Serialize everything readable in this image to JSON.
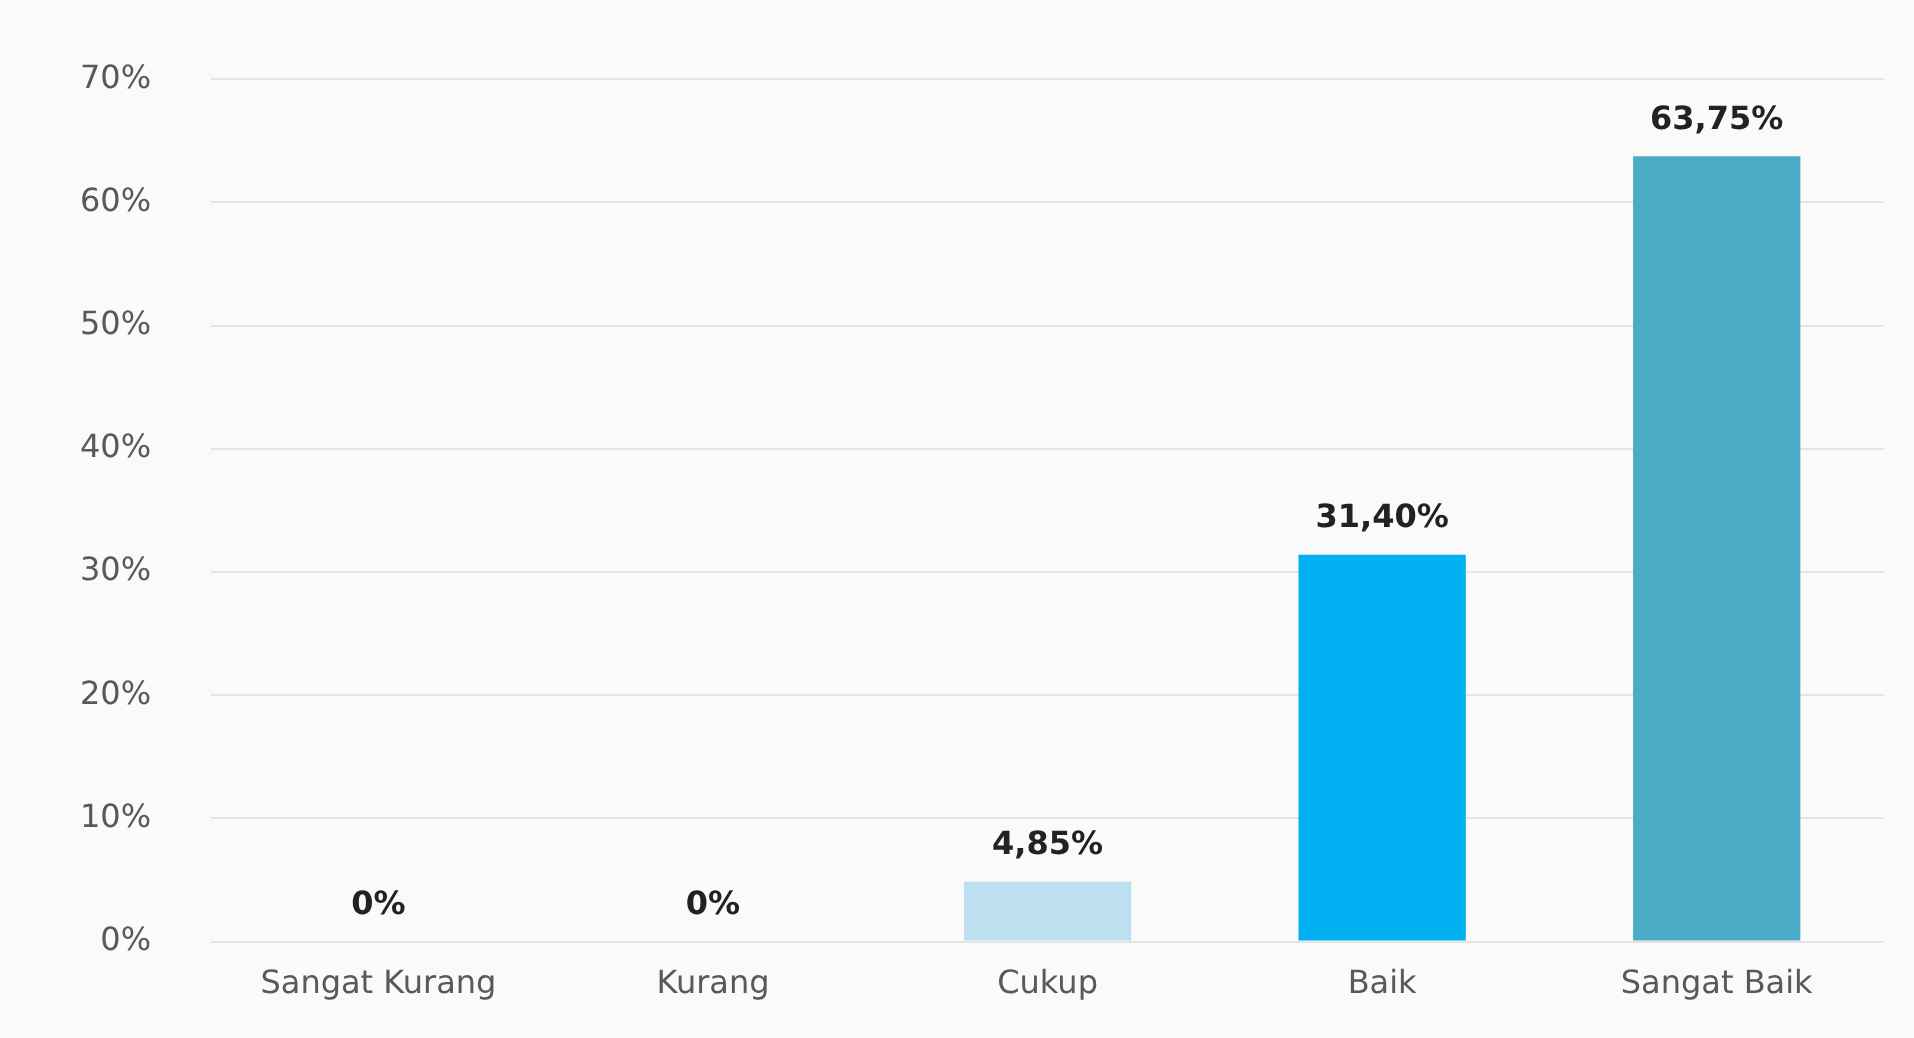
{
  "chart_data": {
    "type": "bar",
    "categories": [
      "Sangat Kurang",
      "Kurang",
      "Cukup",
      "Baik",
      "Sangat Baik"
    ],
    "values": [
      0,
      0,
      4.85,
      31.4,
      63.75
    ],
    "colors": [
      "#bde0f0",
      "#bde0f0",
      "#bde0f0",
      "#00b0f0",
      "#4bacc6"
    ],
    "value_labels": [
      "0%",
      "0%",
      "4,85%",
      "31,40%",
      "63,75%"
    ],
    "ylim": [
      0,
      70
    ],
    "yticks": [
      {
        "value": 0,
        "label": "0%"
      },
      {
        "value": 10,
        "label": "10%"
      },
      {
        "value": 20,
        "label": "20%"
      },
      {
        "value": 30,
        "label": "30%"
      },
      {
        "value": 40,
        "label": "40%"
      },
      {
        "value": 50,
        "label": "50%"
      },
      {
        "value": 60,
        "label": "60%"
      },
      {
        "value": 70,
        "label": "70%"
      }
    ],
    "grid": "y",
    "legend": false
  }
}
